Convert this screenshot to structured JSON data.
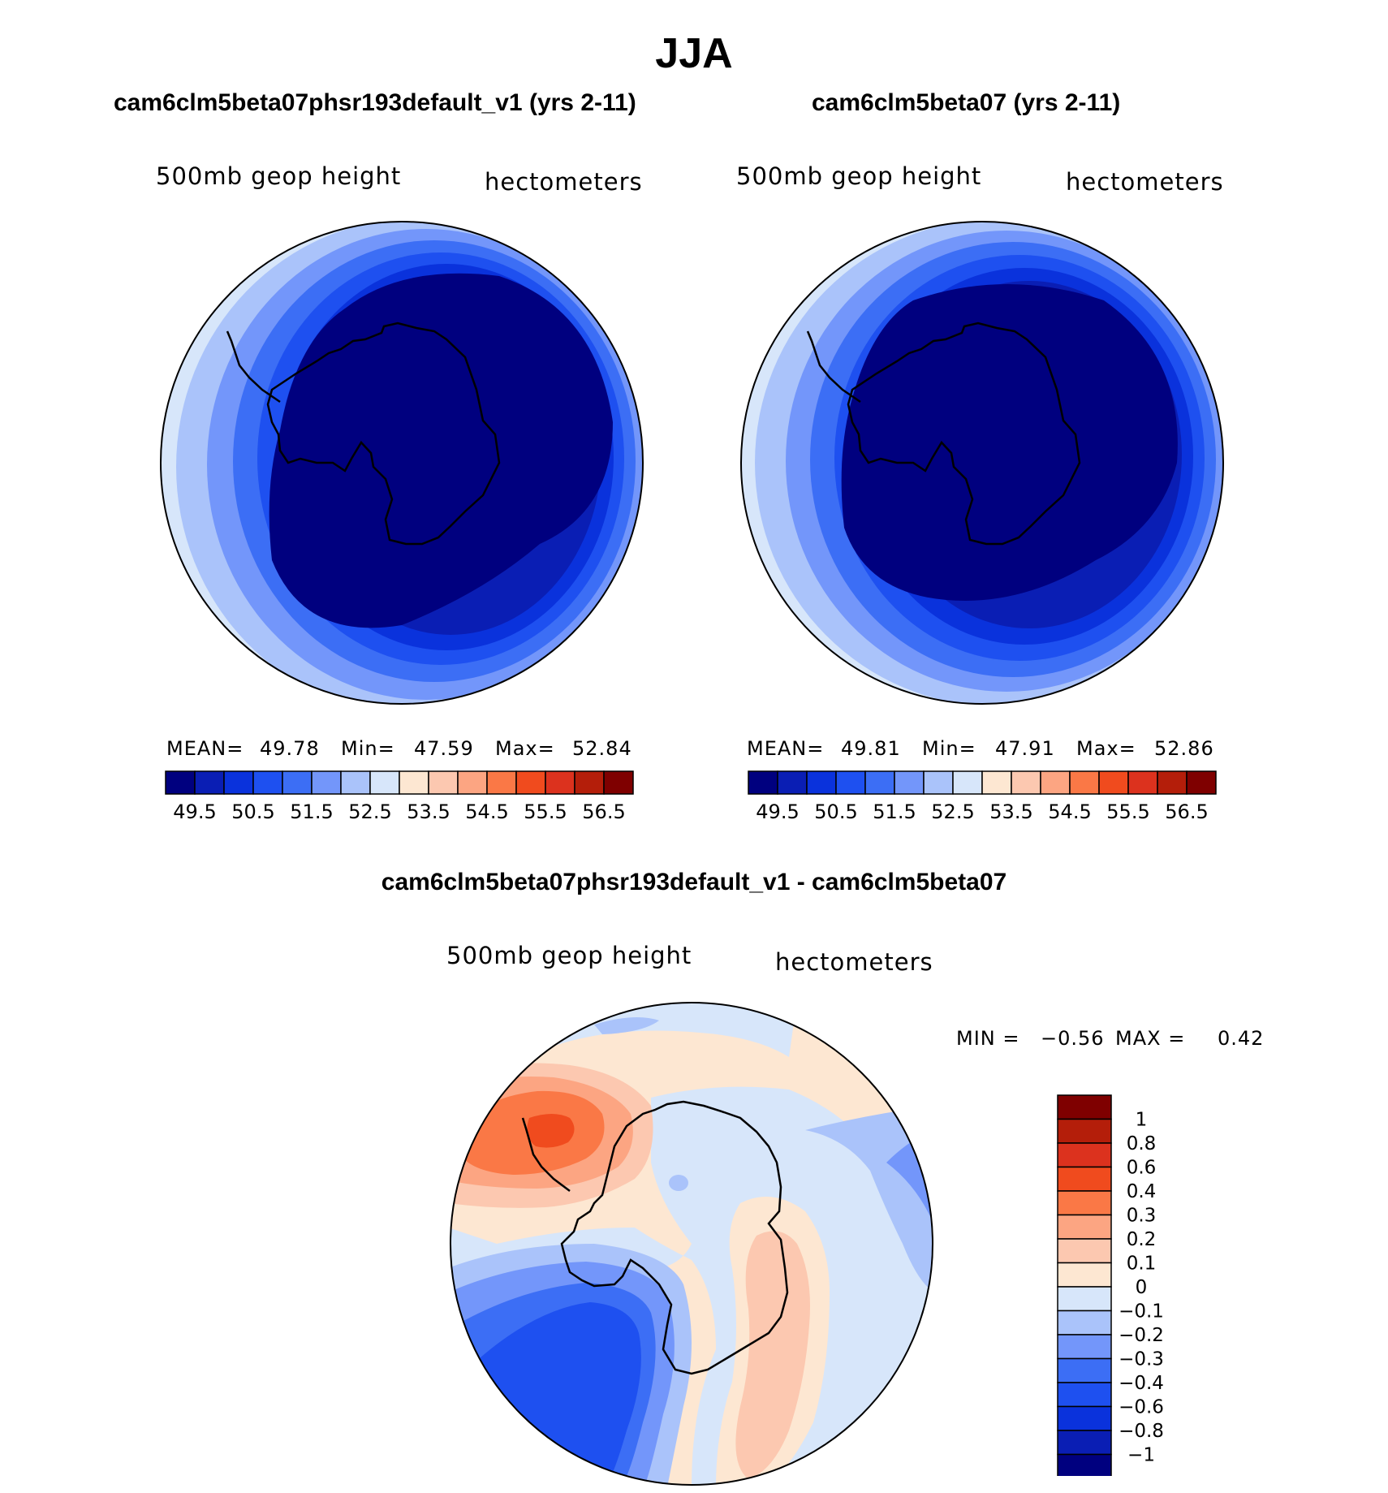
{
  "title": "JJA",
  "panels": [
    {
      "id": "left",
      "heading": "cam6clm5beta07phsr193default_v1 (yrs 2-11)",
      "variable": "500mb  geop  height",
      "units": "hectometers",
      "stats": {
        "mean_label": "MEAN=",
        "mean": "49.78",
        "min_label": "Min=",
        "min": "47.59",
        "max_label": "Max=",
        "max": "52.84"
      }
    },
    {
      "id": "right",
      "heading": "cam6clm5beta07 (yrs 2-11)",
      "variable": "500mb  geop  height",
      "units": "hectometers",
      "stats": {
        "mean_label": "MEAN=",
        "mean": "49.81",
        "min_label": "Min=",
        "min": "47.91",
        "max_label": "Max=",
        "max": "52.86"
      }
    }
  ],
  "top_colorbar": {
    "colors": [
      "#00007f",
      "#0a1eb4",
      "#0a32dc",
      "#1e50f0",
      "#3c6ef5",
      "#7396fa",
      "#aac3fa",
      "#d7e6fa",
      "#fde7d2",
      "#fcc8b0",
      "#fca582",
      "#fa7846",
      "#f04b1e",
      "#dc321e",
      "#b41e0a",
      "#7f0000"
    ],
    "labels": [
      "49.5",
      "50.5",
      "51.5",
      "52.5",
      "53.5",
      "54.5",
      "55.5",
      "56.5"
    ]
  },
  "difference": {
    "heading": "cam6clm5beta07phsr193default_v1 - cam6clm5beta07",
    "variable": "500mb  geop  height",
    "units": "hectometers",
    "minmax": {
      "min_label": "MIN =",
      "min": "−0.56",
      "max_label": "MAX =",
      "max": "0.42"
    },
    "colorbar": {
      "colors": [
        "#7f0000",
        "#b41e0a",
        "#dc321e",
        "#f04b1e",
        "#fa7846",
        "#fca582",
        "#fcc8b0",
        "#fde7d2",
        "#d7e6fa",
        "#aac3fa",
        "#7396fa",
        "#3c6ef5",
        "#1e50f0",
        "#0a32dc",
        "#0a1eb4",
        "#00007f"
      ],
      "labels": [
        "1",
        "0.8",
        "0.6",
        "0.4",
        "0.3",
        "0.2",
        "0.1",
        "0",
        "−0.1",
        "−0.2",
        "−0.3",
        "−0.4",
        "−0.6",
        "−0.8",
        "−1"
      ]
    }
  }
}
